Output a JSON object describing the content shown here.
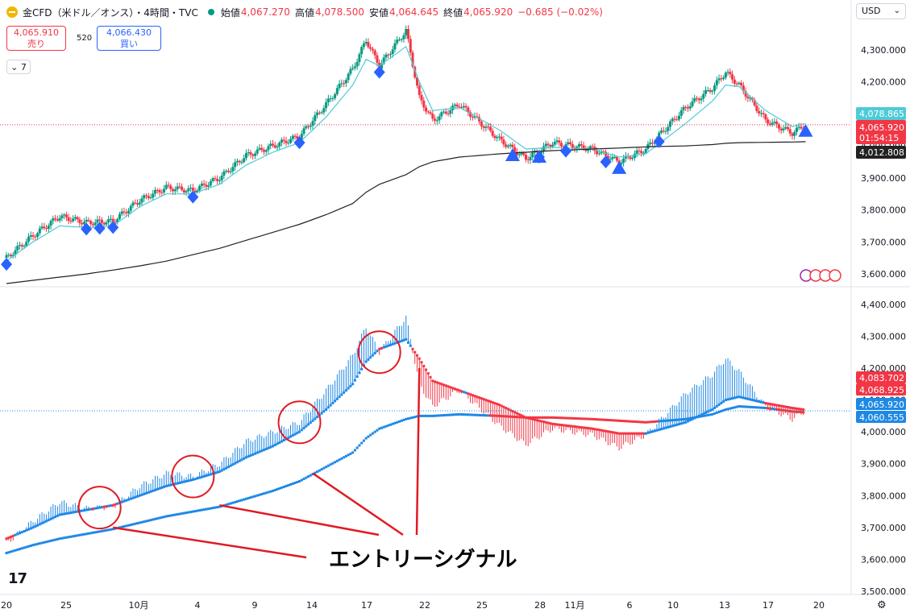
{
  "header": {
    "title": "金CFD（米ドル／オンス）・4時間・TVC",
    "stats": [
      {
        "label": "始値",
        "value": "4,067.270"
      },
      {
        "label": "高値",
        "value": "4,078.500"
      },
      {
        "label": "安値",
        "value": "4,064.645"
      },
      {
        "label": "終値",
        "value": "4,065.920"
      },
      {
        "label": "",
        "value": "−0.685 (−0.02%)"
      }
    ]
  },
  "trade": {
    "sell_price": "4,065.910",
    "sell_label": "売り",
    "spread": "520",
    "buy_price": "4,066.430",
    "buy_label": "買い"
  },
  "indicator_toggle": "7",
  "currency": "USD",
  "logo": "17",
  "colors": {
    "up": "#1e88e5",
    "down": "#f23645",
    "ema_fast": "#4ecbd6",
    "ma_slow": "#222222",
    "annotation": "#e01b22",
    "marker": "#2962ff"
  },
  "chart_data": [
    {
      "type": "line",
      "title": "",
      "x": [
        "9/20",
        "9/22",
        "9/24",
        "9/26",
        "9/28",
        "9/30",
        "10/2",
        "10/4",
        "10/6",
        "10/8",
        "10/10",
        "10/12",
        "10/14",
        "10/16",
        "10/17",
        "10/18",
        "10/20",
        "10/21",
        "10/22",
        "10/24",
        "10/27",
        "10/29",
        "10/31",
        "11/3",
        "11/5",
        "11/7",
        "11/10",
        "11/12",
        "11/13",
        "11/14",
        "11/16",
        "11/18",
        "11/19"
      ],
      "series": [
        {
          "values": [
            3650,
            3720,
            3780,
            3760,
            3765,
            3830,
            3870,
            3860,
            3900,
            3970,
            4000,
            4030,
            4130,
            4240,
            4330,
            4250,
            4360,
            4150,
            4080,
            4130,
            4020,
            3960,
            4010,
            3990,
            3950,
            3990,
            4120,
            4180,
            4230,
            4190,
            4080,
            4040,
            4066
          ]
        },
        {
          "values": [
            3640,
            3700,
            3750,
            3745,
            3750,
            3810,
            3850,
            3850,
            3880,
            3940,
            3980,
            4010,
            4090,
            4190,
            4270,
            4250,
            4310,
            4200,
            4110,
            4120,
            4050,
            3990,
            3995,
            3990,
            3965,
            3975,
            4070,
            4140,
            4190,
            4185,
            4110,
            4060,
            4070
          ]
        },
        {
          "values": [
            3570,
            3580,
            3590,
            3600,
            3612,
            3625,
            3640,
            3660,
            3680,
            3705,
            3730,
            3755,
            3785,
            3820,
            3855,
            3880,
            3910,
            3935,
            3950,
            3965,
            3975,
            3980,
            3985,
            3990,
            3993,
            3997,
            4000,
            4004,
            4008,
            4010,
            4011,
            4012,
            4013
          ]
        }
      ],
      "markers": [
        {
          "shape": "diamond",
          "x": [
            "9/20",
            "9/26",
            "9/27",
            "9/28",
            "10/4",
            "10/12",
            "10/18",
            "10/30",
            "11/1",
            "11/4",
            "11/8"
          ]
        },
        {
          "shape": "triangle",
          "x": [
            "10/28",
            "10/30",
            "11/5",
            "11/19"
          ]
        }
      ],
      "ylim": [
        3570,
        4380
      ],
      "yticks": [
        "3,600.000",
        "3,700.000",
        "3,800.000",
        "3,900.000",
        "4,000.000",
        "4,100.000",
        "4,200.000",
        "4,300.000"
      ],
      "price_labels": [
        {
          "text": "4,078.865"
        },
        {
          "text": "4,065.920"
        },
        {
          "text": "01:54:15"
        },
        {
          "text": "4,012.808"
        }
      ]
    },
    {
      "type": "line",
      "title": "",
      "x": [
        "9/20",
        "9/22",
        "9/24",
        "9/26",
        "9/28",
        "9/30",
        "10/2",
        "10/4",
        "10/6",
        "10/8",
        "10/10",
        "10/12",
        "10/14",
        "10/16",
        "10/17",
        "10/18",
        "10/20",
        "10/21",
        "10/22",
        "10/24",
        "10/27",
        "10/29",
        "10/31",
        "11/3",
        "11/5",
        "11/7",
        "11/10",
        "11/12",
        "11/13",
        "11/14",
        "11/16",
        "11/18",
        "11/19"
      ],
      "series": [
        {
          "values": [
            3650,
            3720,
            3780,
            3760,
            3765,
            3830,
            3870,
            3860,
            3900,
            3970,
            4000,
            4030,
            4130,
            4240,
            4330,
            4250,
            4360,
            4150,
            4080,
            4130,
            4020,
            3960,
            4010,
            3990,
            3950,
            3990,
            4120,
            4180,
            4230,
            4190,
            4080,
            4040,
            4066
          ]
        },
        {
          "values": [
            3665,
            3700,
            3740,
            3755,
            3770,
            3800,
            3830,
            3850,
            3875,
            3920,
            3955,
            4000,
            4070,
            4150,
            4220,
            4260,
            4290,
            4230,
            4160,
            4130,
            4085,
            4045,
            4025,
            4010,
            3995,
            3995,
            4030,
            4070,
            4100,
            4110,
            4090,
            4075,
            4069
          ]
        },
        {
          "values": [
            3620,
            3645,
            3665,
            3680,
            3695,
            3715,
            3735,
            3750,
            3765,
            3790,
            3815,
            3845,
            3890,
            3935,
            3980,
            4010,
            4040,
            4050,
            4050,
            4055,
            4050,
            4045,
            4045,
            4040,
            4035,
            4030,
            4040,
            4055,
            4070,
            4080,
            4075,
            4064,
            4061
          ]
        }
      ],
      "ylim": [
        3490,
        4440
      ],
      "yticks": [
        "3,500.000",
        "3,600.000",
        "3,700.000",
        "3,800.000",
        "3,900.000",
        "4,000.000",
        "4,100.000",
        "4,200.000",
        "4,300.000",
        "4,400.000"
      ],
      "price_labels": [
        {
          "text": "4,083.702"
        },
        {
          "text": "4,068.925"
        },
        {
          "text": "4,065.920"
        },
        {
          "text": "4,060.555"
        }
      ],
      "annotation": "エントリーシグナル",
      "signal_circles": [
        "9/27",
        "10/4",
        "10/12",
        "10/18"
      ]
    }
  ],
  "xaxis_labels": [
    "20",
    "25",
    "10月",
    "4",
    "9",
    "14",
    "17",
    "22",
    "25",
    "28",
    "11月",
    "6",
    "10",
    "13",
    "17",
    "20"
  ]
}
